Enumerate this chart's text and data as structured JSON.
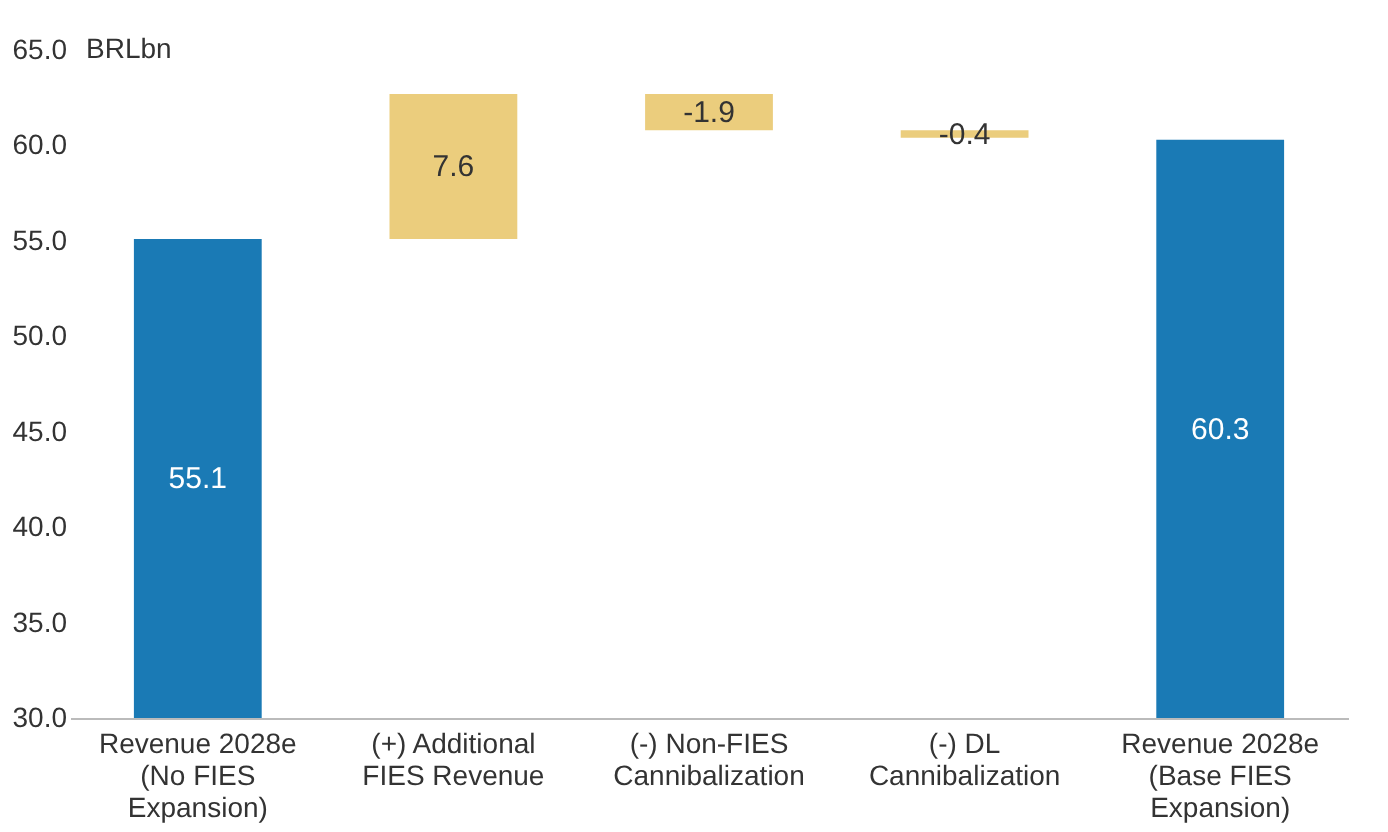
{
  "chart_data": {
    "type": "bar",
    "ylabel": "BRLbn",
    "categories": [
      "Revenue 2028e\n(No FIES\nExpansion)",
      "(+) Additional\nFIES Revenue",
      "(-) Non-FIES\nCannibalization",
      "(-) DL\nCannibalization",
      "Revenue 2028e\n(Base FIES\nExpansion)"
    ],
    "values": [
      55.1,
      7.6,
      -1.9,
      -0.4,
      60.3
    ],
    "base": [
      null,
      55.1,
      62.7,
      60.8,
      null
    ],
    "colors": [
      "#1a7ab5",
      "#ebcd7d",
      "#ebcd7d",
      "#ebcd7d",
      "#1a7ab5"
    ],
    "ylim": [
      30,
      65
    ],
    "yticks": [
      {
        "value": 30,
        "label": "30.0"
      },
      {
        "value": 35,
        "label": "35.0"
      },
      {
        "value": 40,
        "label": "40.0"
      },
      {
        "value": 45,
        "label": "45.0"
      },
      {
        "value": 50,
        "label": "50.0"
      },
      {
        "value": 55,
        "label": "55.0"
      },
      {
        "value": 60,
        "label": "60.0"
      },
      {
        "value": 65,
        "label": "65.0"
      }
    ],
    "data_labels": true,
    "grid": false
  }
}
